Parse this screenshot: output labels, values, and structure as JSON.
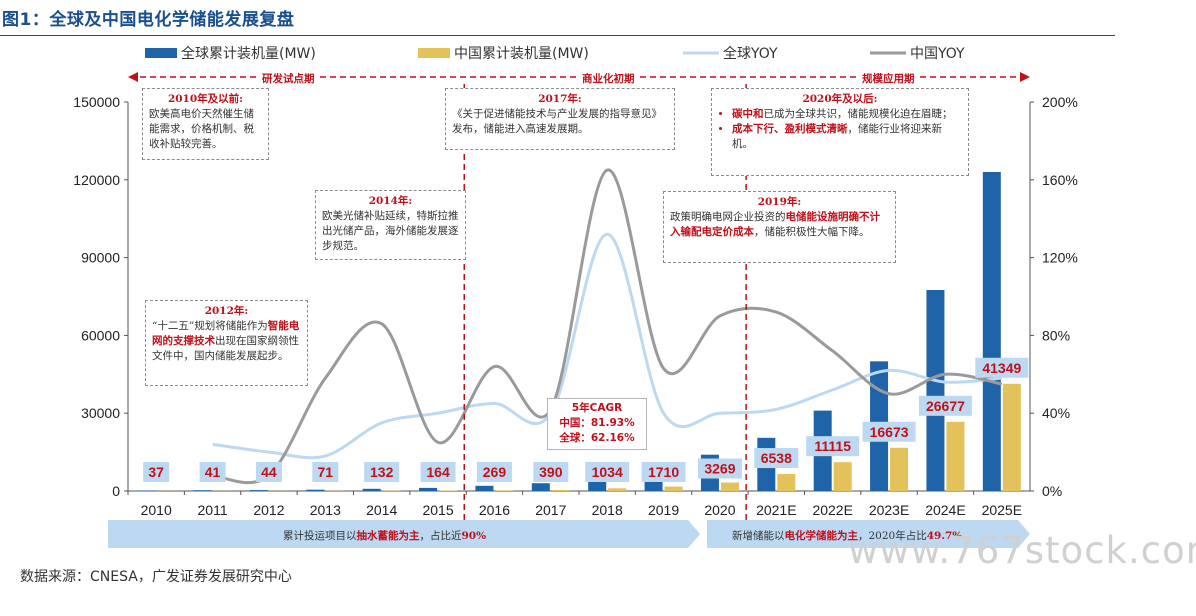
{
  "figure_title": "图1：全球及中国电化学储能发展复盘",
  "source": "数据来源：CNESA，广发证券发展研究中心",
  "watermark": "www.767stock.com",
  "colors": {
    "global_bar": "#1f64a8",
    "china_bar": "#e4c25b",
    "global_yoy": "#bcd9f1",
    "china_yoy": "#9a9a9a",
    "accent_red": "#c0111b",
    "band": "#bcd9f1"
  },
  "phases": [
    "研发试点期",
    "商业化初期",
    "规模应用期"
  ],
  "annotations": {
    "a2010": {
      "head": "2010年及以前:",
      "body": "欧美高电价天然催生储能需求，价格机制、税收补贴较完善。"
    },
    "a2012": {
      "head": "2012年:",
      "pre": "“十二五”规划将储能作为",
      "em": "智能电网的支撑技术",
      "post": "出现在国家纲领性文件中，国内储能发展起步。"
    },
    "a2014": {
      "head": "2014年:",
      "body": "欧美光储补贴延续，特斯拉推出光储产品，海外储能发展逐步规范。"
    },
    "a2017": {
      "head": "2017年:",
      "body": "《关于促进储能技术与产业发展的指导意见》发布，储能进入高速发展期。"
    },
    "a2019": {
      "head": "2019年:",
      "pre": "政策明确电网企业投资的",
      "em": "电储能设施明确不计入输配电定价成本",
      "post": "，储能积极性大幅下降。"
    },
    "a2020": {
      "head": "2020年及以后:",
      "b1_em": "碳中和",
      "b1": "已成为全球共识，储能规模化迫在眉睫；",
      "b2_em": "成本下行、盈利模式清晰",
      "b2": "，储能行业将迎来新机。"
    }
  },
  "cagr": {
    "title": "5年CAGR",
    "china": "中国：81.93%",
    "global": "全球：62.16%"
  },
  "bands": {
    "left": {
      "pre": "累计投运项目以",
      "em": "抽水蓄能为主",
      "mid": "，占比近",
      "em2": "90%"
    },
    "right": {
      "pre": "新增储能以",
      "em": "电化学储能为主",
      "mid": "，2020年占比",
      "em2": "49.7%"
    }
  },
  "chart_data": {
    "type": "bar",
    "categories": [
      "2010",
      "2011",
      "2012",
      "2013",
      "2014",
      "2015",
      "2016",
      "2017",
      "2018",
      "2019",
      "2020",
      "2021E",
      "2022E",
      "2023E",
      "2024E",
      "2025E"
    ],
    "series": [
      {
        "name": "全球累计装机量(MW)",
        "type": "bar",
        "axis": "left",
        "values": [
          200,
          300,
          350,
          500,
          850,
          1200,
          2000,
          3000,
          6500,
          9500,
          14000,
          20500,
          31000,
          50000,
          77500,
          123000
        ]
      },
      {
        "name": "中国累计装机量(MW)",
        "type": "bar",
        "axis": "left",
        "values": [
          37,
          41,
          44,
          71,
          132,
          164,
          269,
          390,
          1034,
          1710,
          3269,
          6538,
          11115,
          16673,
          26677,
          41349
        ],
        "labels": [
          "37",
          "41",
          "44",
          "71",
          "132",
          "164",
          "269",
          "390",
          "1034",
          "1710",
          "3269",
          "6538",
          "11115",
          "16673",
          "26677",
          "41349"
        ]
      },
      {
        "name": "全球YOY",
        "type": "line",
        "axis": "right",
        "values": [
          null,
          0.24,
          0.2,
          0.18,
          0.35,
          0.4,
          0.45,
          0.4,
          1.32,
          0.4,
          0.4,
          0.42,
          0.52,
          0.62,
          0.56,
          0.58
        ]
      },
      {
        "name": "中国YOY",
        "type": "line",
        "axis": "right",
        "values": [
          null,
          0.08,
          0.08,
          0.58,
          0.86,
          0.25,
          0.64,
          0.42,
          1.65,
          0.63,
          0.9,
          0.92,
          0.72,
          0.5,
          0.6,
          0.55
        ]
      }
    ],
    "ylim_left": [
      0,
      150000
    ],
    "yticks_left": [
      "0",
      "30000",
      "60000",
      "90000",
      "120000",
      "150000"
    ],
    "ylim_right": [
      0,
      2.0
    ],
    "yticks_right": [
      "0%",
      "40%",
      "80%",
      "120%",
      "160%",
      "200%"
    ],
    "legend_position": "top",
    "grid": false
  }
}
